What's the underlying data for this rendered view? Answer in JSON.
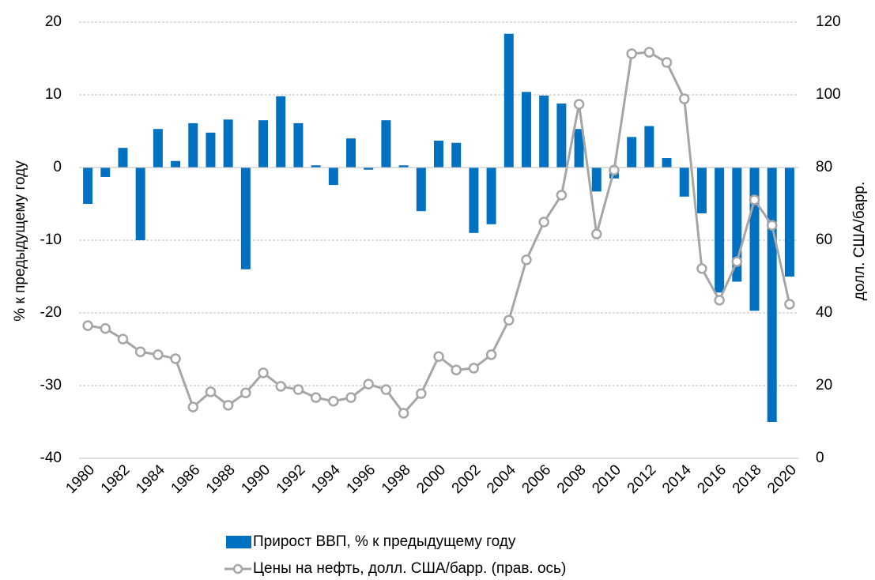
{
  "chart_data": {
    "type": "bar_line",
    "categories": [
      "1980",
      null,
      "1982",
      null,
      "1984",
      null,
      "1986",
      null,
      "1988",
      null,
      "1990",
      null,
      "1992",
      null,
      "1994",
      null,
      "1996",
      null,
      "1998",
      null,
      "2000",
      null,
      "2002",
      null,
      "2004",
      null,
      "2006",
      null,
      "2008",
      null,
      "2010",
      null,
      "2012",
      null,
      "2014",
      null,
      "2016",
      null,
      "2018",
      null,
      "2020"
    ],
    "series": [
      {
        "name": "Прирост ВВП, % к предыдущему году",
        "type": "bar",
        "color": "#0070c0",
        "values": [
          -5,
          -1.3,
          2.7,
          -10,
          5.3,
          0.9,
          6.1,
          4.8,
          6.6,
          -14,
          6.5,
          9.8,
          6.1,
          0.3,
          -2.4,
          4.0,
          -0.3,
          6.5,
          0.3,
          -6,
          3.7,
          3.4,
          -9,
          -7.8,
          18.4,
          10.4,
          9.9,
          8.8,
          5.3,
          -3.3,
          -1.5,
          4.2,
          5.7,
          1.3,
          -4,
          -6.3,
          -17.2,
          -15.7,
          -19.7,
          -35,
          -15
        ]
      },
      {
        "name": "Цены на нефть, долл. США/барр. (прав. ось)",
        "type": "line",
        "axis": "y2",
        "color": "#a6a6a6",
        "values": [
          36.5,
          35.7,
          32.8,
          29.3,
          28.5,
          27.4,
          14.1,
          18.3,
          14.6,
          18.0,
          23.5,
          19.8,
          18.9,
          16.7,
          15.7,
          16.7,
          20.4,
          18.9,
          12.4,
          17.8,
          28.0,
          24.3,
          24.8,
          28.5,
          38.0,
          54.6,
          65.0,
          72.4,
          97.4,
          61.7,
          79.3,
          111.3,
          111.7,
          108.9,
          98.9,
          52.2,
          43.5,
          54.1,
          71.1,
          64.1,
          42.4
        ]
      }
    ],
    "y_label": "% к предыдущему году",
    "y2_label": "долл. США/барр.",
    "ylim": [
      -40,
      20
    ],
    "yticks": [
      -40,
      -30,
      -20,
      -10,
      0,
      10,
      20
    ],
    "y2lim": [
      0,
      120
    ],
    "y2ticks": [
      0,
      20,
      40,
      60,
      80,
      100,
      120
    ],
    "grid": true,
    "legend": "bottom"
  }
}
